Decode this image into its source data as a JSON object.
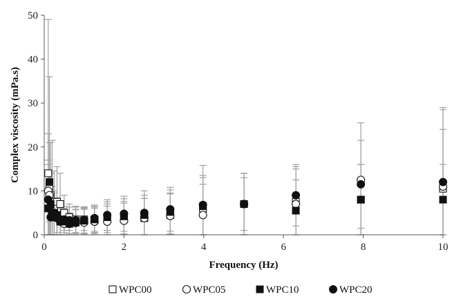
{
  "chart_data": {
    "type": "scatter",
    "xlabel": "Frequency (Hz)",
    "ylabel": "Complex viscosity (mPa.s)",
    "xlim": [
      0,
      10
    ],
    "ylim": [
      0,
      50
    ],
    "x_ticks": [
      "0",
      "2",
      "4",
      "6",
      "8",
      "10"
    ],
    "y_ticks": [
      "0",
      "10",
      "20",
      "30",
      "40",
      "50"
    ],
    "grid": false,
    "legend_position": "bottom",
    "error_bar_color": "#a0a0a0",
    "series": [
      {
        "name": "WPC00",
        "marker": "open-square",
        "x": [
          0.1,
          0.13,
          0.16,
          0.2,
          0.25,
          0.32,
          0.4,
          0.5,
          0.63,
          0.79,
          1.0,
          1.26,
          1.58,
          2.0,
          2.51,
          3.16,
          3.98,
          5.01,
          6.31,
          7.94,
          10.0
        ],
        "y": [
          14,
          11,
          9,
          7.5,
          6.5,
          7.5,
          7,
          5,
          4,
          3.5,
          3.5,
          3.3,
          3.5,
          3.6,
          3.8,
          4.5,
          6,
          7,
          7.5,
          8,
          10.5
        ],
        "err": [
          35,
          25,
          12,
          14,
          8,
          8,
          7,
          4,
          3,
          3,
          2.5,
          3,
          3.5,
          4,
          4.5,
          5,
          7,
          7,
          8,
          8,
          18
        ]
      },
      {
        "name": "WPC05",
        "marker": "open-circle",
        "x": [
          0.1,
          0.13,
          0.16,
          0.2,
          0.25,
          0.32,
          0.4,
          0.5,
          0.63,
          0.79,
          1.0,
          1.26,
          1.58,
          2.0,
          2.51,
          3.16,
          3.98,
          5.01,
          6.31,
          7.94,
          10.0
        ],
        "y": [
          10,
          9,
          6,
          5,
          4.5,
          4,
          3,
          2.5,
          2.5,
          2.7,
          2.8,
          3,
          3,
          3.2,
          3.8,
          4.3,
          4.5,
          7,
          7,
          12.5,
          11
        ],
        "err": [
          13,
          12,
          8,
          6,
          5,
          4,
          3,
          3,
          2.5,
          3,
          3,
          3,
          3.5,
          4,
          4.5,
          5,
          7,
          7,
          8,
          13,
          18
        ]
      },
      {
        "name": "WPC10",
        "marker": "filled-square",
        "x": [
          0.1,
          0.13,
          0.16,
          0.2,
          0.25,
          0.32,
          0.4,
          0.5,
          0.63,
          0.79,
          1.0,
          1.26,
          1.58,
          2.0,
          2.51,
          3.16,
          3.98,
          5.01,
          6.31,
          7.94,
          10.0
        ],
        "y": [
          6,
          12,
          7,
          5,
          5,
          4.5,
          3,
          3,
          2.5,
          2.8,
          3.2,
          3.5,
          4,
          4.2,
          4.5,
          5.2,
          6.5,
          7,
          5.5,
          8,
          8
        ],
        "err": [
          10,
          9,
          7,
          6,
          5,
          4,
          3,
          3,
          2.5,
          3,
          3,
          3,
          3.5,
          4,
          4.5,
          5,
          7,
          6,
          7,
          8,
          8
        ]
      },
      {
        "name": "WPC20",
        "marker": "filled-circle",
        "x": [
          0.1,
          0.13,
          0.16,
          0.2,
          0.25,
          0.32,
          0.4,
          0.5,
          0.63,
          0.79,
          1.0,
          1.26,
          1.58,
          2.0,
          2.51,
          3.16,
          3.98,
          5.01,
          6.31,
          7.94,
          10.0
        ],
        "y": [
          8,
          6,
          4,
          4,
          4,
          3.8,
          3.5,
          3.5,
          3.3,
          3.3,
          3.4,
          3.8,
          4.5,
          4.8,
          5,
          5.8,
          6.8,
          7,
          9,
          11.5,
          12
        ],
        "err": [
          9,
          8,
          6,
          5,
          4.5,
          4,
          3.5,
          3,
          3,
          3,
          3,
          3,
          3.5,
          4,
          5,
          5,
          9,
          7,
          7,
          10,
          12
        ]
      }
    ]
  }
}
